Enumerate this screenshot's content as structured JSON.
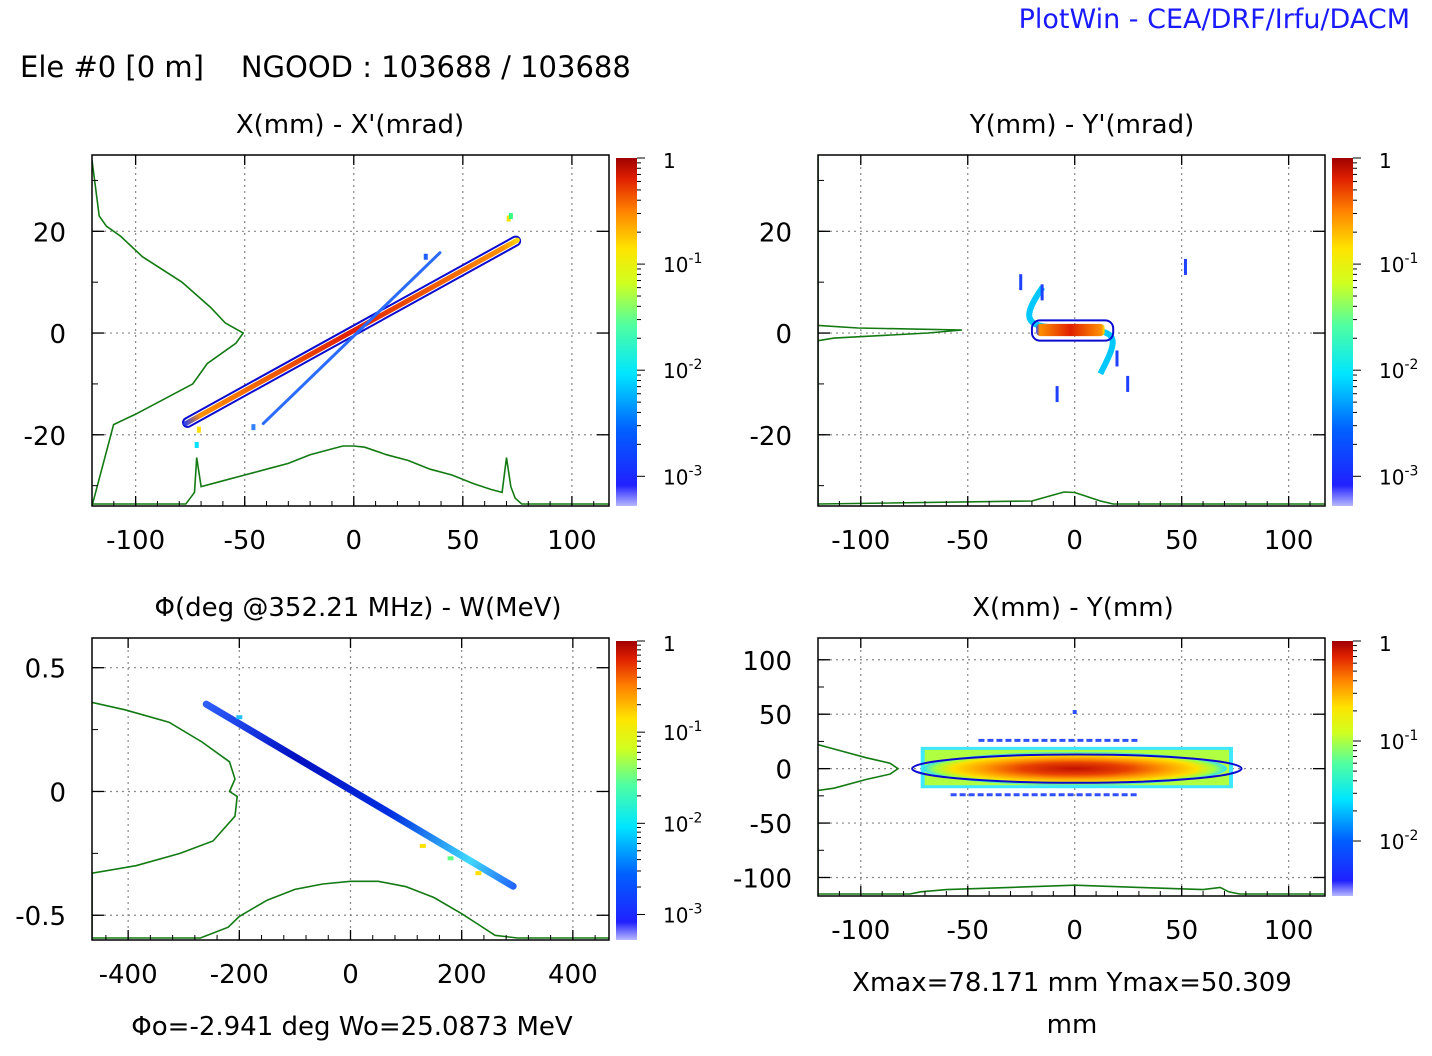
{
  "brand": "PlotWin - CEA/DRF/Irfu/DACM",
  "header": "Ele #0 [0 m]    NGOOD : 103688 / 103688",
  "colors": {
    "contour": "#0a0ad0",
    "profile": "#137a13",
    "grid": "#888888",
    "frame": "#000000"
  },
  "panels": [
    {
      "id": "x-xp",
      "title": "X(mm) - X'(mrad)",
      "xlim": [
        -120,
        117
      ],
      "ylim": [
        -34,
        35
      ],
      "xticks": [
        -100,
        -50,
        0,
        50,
        100
      ],
      "yticks": [
        20,
        0,
        -20
      ],
      "ytick_labels": [
        "20",
        "0",
        "-20"
      ],
      "colorbar": {
        "max_label": "1",
        "exponents": [
          "-1",
          "-2",
          "-3"
        ]
      },
      "footer": ""
    },
    {
      "id": "y-yp",
      "title": "Y(mm) - Y'(mrad)",
      "xlim": [
        -120,
        117
      ],
      "ylim": [
        -34,
        35
      ],
      "xticks": [
        -100,
        -50,
        0,
        50,
        100
      ],
      "yticks": [
        20,
        0,
        -20
      ],
      "ytick_labels": [
        "20",
        "0",
        "-20"
      ],
      "colorbar": {
        "max_label": "1",
        "exponents": [
          "-1",
          "-2",
          "-3"
        ]
      },
      "footer": ""
    },
    {
      "id": "phi-w",
      "title": "Φ(deg @352.21 MHz) - W(MeV)",
      "xlim": [
        -465,
        465
      ],
      "ylim": [
        -0.6,
        0.62
      ],
      "xticks": [
        -400,
        -200,
        0,
        200,
        400
      ],
      "yticks": [
        0.5,
        0,
        -0.5
      ],
      "ytick_labels": [
        "0.5",
        "0",
        "-0.5"
      ],
      "colorbar": {
        "max_label": "1",
        "exponents": [
          "-1",
          "-2",
          "-3"
        ]
      },
      "footer": "Φo=-2.941 deg  Wo=25.0873 MeV"
    },
    {
      "id": "x-y",
      "title": "X(mm) - Y(mm)",
      "xlim": [
        -120,
        117
      ],
      "ylim": [
        -117,
        120
      ],
      "xticks": [
        -100,
        -50,
        0,
        50,
        100
      ],
      "yticks": [
        100,
        50,
        0,
        -50,
        -100
      ],
      "ytick_labels": [
        "100",
        "50",
        "0",
        "-50",
        "-100"
      ],
      "colorbar": {
        "max_label": "1",
        "exponents": [
          "-1",
          "-2"
        ]
      },
      "footer": "Xmax=78.171 mm  Ymax=50.309\nmm"
    }
  ],
  "chart_data": [
    {
      "type": "heatmap",
      "title": "X(mm) - X'(mrad)",
      "xlabel": "X (mm)",
      "ylabel": "X' (mrad)",
      "color_scale": "log",
      "color_range": [
        0.0005,
        1
      ],
      "main_band": {
        "from": [
          -78,
          -18
        ],
        "to": [
          76,
          18.5
        ]
      },
      "secondary_band": {
        "from": [
          -42,
          -18
        ],
        "to": [
          40,
          16
        ]
      },
      "contour_ellipse": {
        "cx": 0,
        "cy": 0.3,
        "semi_major_x": 77,
        "slope": 0.238,
        "half_width": 1.0
      },
      "x_profile": [
        [
          -77,
          0
        ],
        [
          -75,
          1
        ],
        [
          -73,
          2
        ],
        [
          -72,
          8
        ],
        [
          -70,
          3
        ],
        [
          -60,
          4
        ],
        [
          -50,
          5
        ],
        [
          -40,
          6
        ],
        [
          -30,
          7
        ],
        [
          -20,
          8.5
        ],
        [
          -10,
          9.5
        ],
        [
          -5,
          10
        ],
        [
          0,
          10
        ],
        [
          5,
          9.8
        ],
        [
          15,
          8.5
        ],
        [
          25,
          7.5
        ],
        [
          35,
          6
        ],
        [
          45,
          5
        ],
        [
          55,
          3.5
        ],
        [
          63,
          2.5
        ],
        [
          68,
          2
        ],
        [
          70,
          8
        ],
        [
          72,
          3
        ],
        [
          74,
          1
        ],
        [
          77,
          0
        ]
      ],
      "y_profile": [
        [
          -34,
          0
        ],
        [
          -18,
          6
        ],
        [
          -16,
          12
        ],
        [
          -10,
          28
        ],
        [
          -6,
          32
        ],
        [
          -2,
          40
        ],
        [
          0,
          42
        ],
        [
          2,
          37
        ],
        [
          5,
          33
        ],
        [
          10,
          25
        ],
        [
          15,
          14
        ],
        [
          19,
          8
        ],
        [
          21,
          4
        ],
        [
          23,
          2
        ],
        [
          34,
          0
        ]
      ]
    },
    {
      "type": "heatmap",
      "title": "Y(mm) - Y'(mrad)",
      "xlabel": "Y (mm)",
      "ylabel": "Y' (mrad)",
      "color_scale": "log",
      "color_range": [
        0.0003,
        1
      ],
      "core": {
        "x_range": [
          -20,
          18
        ],
        "y_range": [
          -1.5,
          2.5
        ]
      },
      "tails": [
        [
          -25,
          10
        ],
        [
          -15,
          8
        ],
        [
          20,
          -5
        ],
        [
          25,
          -10
        ],
        [
          -8,
          -12
        ],
        [
          52,
          13
        ]
      ],
      "y_profile": [
        [
          -120,
          0
        ],
        [
          -20,
          0.6
        ],
        [
          -10,
          1.8
        ],
        [
          -5,
          2.4
        ],
        [
          0,
          2.3
        ],
        [
          5,
          1.6
        ],
        [
          12,
          0.6
        ],
        [
          18,
          0
        ],
        [
          117,
          0
        ]
      ],
      "x_profile": [
        [
          -1.5,
          0
        ],
        [
          -1,
          8
        ],
        [
          0,
          55
        ],
        [
          0.6,
          72
        ],
        [
          1,
          20
        ],
        [
          1.5,
          0
        ]
      ]
    },
    {
      "type": "heatmap",
      "title": "Φ(deg @352.21 MHz) - W(MeV)",
      "xlabel": "Φ (deg)",
      "ylabel": "W (MeV)",
      "color_scale": "log",
      "color_range": [
        0.0004,
        1
      ],
      "band": {
        "from": [
          -265,
          0.36
        ],
        "to": [
          298,
          -0.39
        ]
      },
      "phi_profile": [
        [
          -270,
          0
        ],
        [
          -220,
          4
        ],
        [
          -200,
          8
        ],
        [
          -150,
          14
        ],
        [
          -100,
          18
        ],
        [
          -50,
          20
        ],
        [
          0,
          21
        ],
        [
          50,
          21
        ],
        [
          100,
          19
        ],
        [
          150,
          15
        ],
        [
          200,
          9
        ],
        [
          230,
          5
        ],
        [
          260,
          1
        ],
        [
          300,
          0
        ]
      ],
      "w_profile": [
        [
          -0.6,
          0
        ],
        [
          -0.33,
          0
        ],
        [
          -0.3,
          40
        ],
        [
          -0.25,
          80
        ],
        [
          -0.2,
          110
        ],
        [
          -0.1,
          130
        ],
        [
          -0.02,
          132
        ],
        [
          0,
          125
        ],
        [
          0.05,
          130
        ],
        [
          0.12,
          125
        ],
        [
          0.2,
          100
        ],
        [
          0.28,
          70
        ],
        [
          0.33,
          30
        ],
        [
          0.36,
          0
        ]
      ]
    },
    {
      "type": "heatmap",
      "title": "X(mm) - Y(mm)",
      "xlabel": "X (mm)",
      "ylabel": "Y (mm)",
      "color_scale": "log",
      "color_range": [
        0.003,
        1
      ],
      "core": {
        "x_range": [
          -72,
          74
        ],
        "y_range": [
          -18,
          20
        ]
      },
      "contour_ellipse": {
        "cx": 1,
        "cy": 0,
        "rx": 77,
        "ry": 13
      },
      "x_profile": [
        [
          -77,
          0
        ],
        [
          -72,
          1
        ],
        [
          -60,
          2
        ],
        [
          -30,
          3
        ],
        [
          0,
          4
        ],
        [
          30,
          3
        ],
        [
          60,
          2
        ],
        [
          68,
          3
        ],
        [
          72,
          1
        ],
        [
          77,
          0
        ]
      ],
      "y_profile": [
        [
          -117,
          0
        ],
        [
          -20,
          0
        ],
        [
          -18,
          10
        ],
        [
          -10,
          30
        ],
        [
          -5,
          45
        ],
        [
          0,
          50
        ],
        [
          5,
          45
        ],
        [
          10,
          30
        ],
        [
          18,
          10
        ],
        [
          22,
          0
        ]
      ]
    }
  ]
}
